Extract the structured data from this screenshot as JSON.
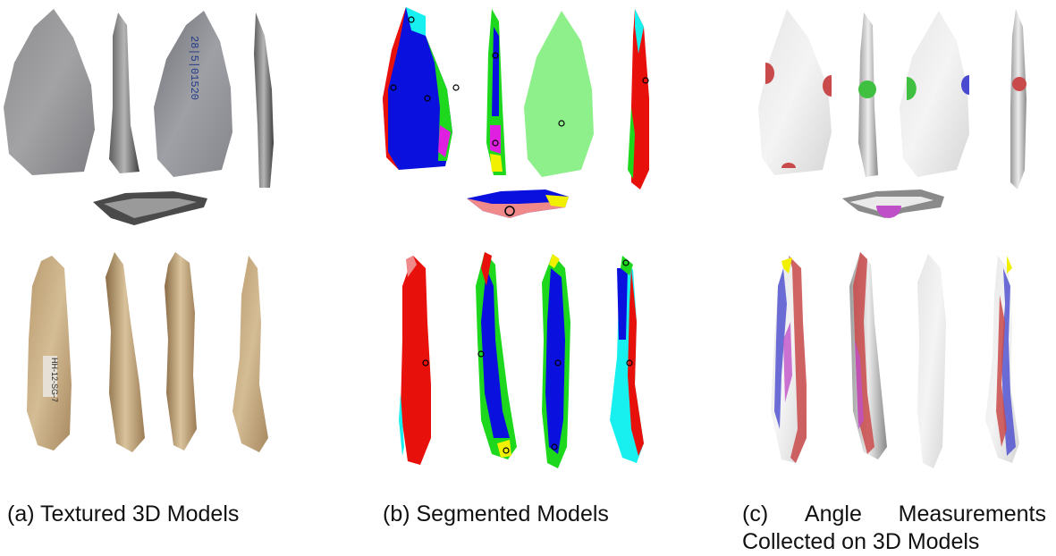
{
  "captions": {
    "a": "(a) Textured 3D Models",
    "b": "(b) Segmented Models",
    "c_line1_part1": "(c)",
    "c_line1_part2": "Angle",
    "c_line1_part3": "Measurements",
    "c_line2": "Collected on 3D Models"
  },
  "artifact_labels": {
    "top_back_label": "28|5|01520",
    "bottom_front_label": "HH-12-SG-7"
  },
  "colors": {
    "segment_red": "#e8100a",
    "segment_blue": "#0a10dd",
    "segment_green": "#1ed81e",
    "segment_light_green": "#8ef08a",
    "segment_cyan": "#18f0f0",
    "segment_magenta": "#e020e0",
    "segment_yellow": "#f0f000",
    "segment_pink": "#f08a8a",
    "measure_red": "#c94a4a",
    "measure_blue": "#4a4ad0",
    "measure_magenta": "#c050c8",
    "measure_green": "#40c040"
  }
}
